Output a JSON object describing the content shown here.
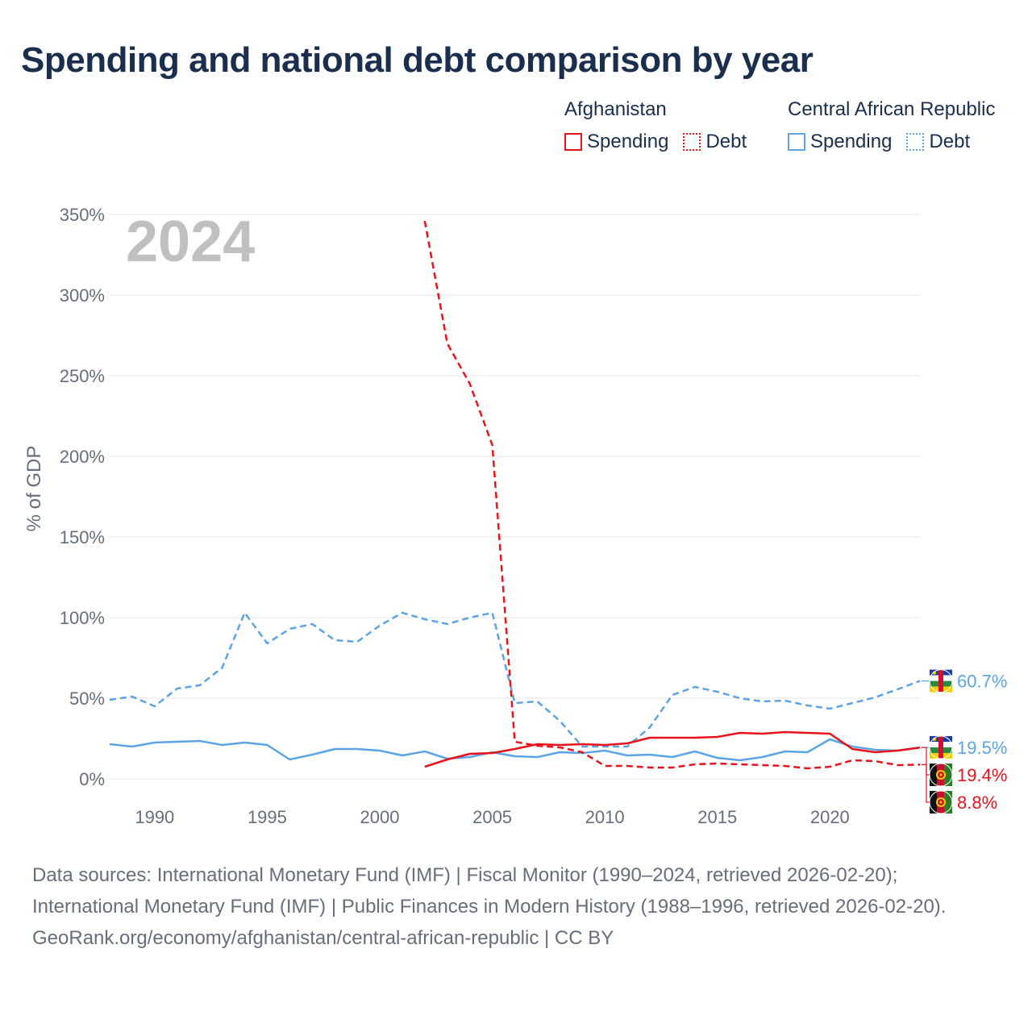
{
  "title": "Spending and national debt comparison by year",
  "legend": {
    "groups": [
      {
        "country": "Afghanistan",
        "spending_label": "Spending",
        "debt_label": "Debt",
        "color": "#e8131b"
      },
      {
        "country": "Central African Republic",
        "spending_label": "Spending",
        "debt_label": "Debt",
        "color": "#5ba4e5"
      }
    ]
  },
  "footer": {
    "sources": "Data sources: International Monetary Fund (IMF) | Fiscal Monitor (1990–2024, retrieved 2026-02-20); International Monetary Fund (IMF) | Public Finances in Modern History (1988–1996, retrieved 2026-02-20).",
    "credit": "GeoRank.org/economy/afghanistan/central-african-republic | CC BY"
  },
  "chart_data": {
    "type": "line",
    "title": "Spending and national debt comparison by year",
    "year_label": "2024",
    "xlabel": "",
    "ylabel": "% of GDP",
    "xlim": [
      1988,
      2024
    ],
    "ylim": [
      0,
      350
    ],
    "x_ticks": [
      1990,
      1995,
      2000,
      2005,
      2010,
      2015,
      2020
    ],
    "y_ticks": [
      0,
      50,
      100,
      150,
      200,
      250,
      300,
      350
    ],
    "y_tick_labels": [
      "0%",
      "50%",
      "100%",
      "150%",
      "200%",
      "250%",
      "300%",
      "350%"
    ],
    "series": [
      {
        "name": "Central African Republic Debt",
        "country": "Central African Republic",
        "measure": "Debt",
        "color": "#5ba4e5",
        "dashed": true,
        "x": [
          1988,
          1989,
          1990,
          1991,
          1992,
          1993,
          1994,
          1995,
          1996,
          1997,
          1998,
          1999,
          2000,
          2001,
          2002,
          2003,
          2004,
          2005,
          2006,
          2007,
          2008,
          2009,
          2010,
          2011,
          2012,
          2013,
          2014,
          2015,
          2016,
          2017,
          2018,
          2019,
          2020,
          2021,
          2022,
          2023,
          2024
        ],
        "values": [
          49,
          51,
          45,
          56,
          58,
          69,
          103,
          84,
          93,
          96,
          86,
          85,
          95,
          103,
          99,
          96,
          100,
          103,
          47,
          48,
          36,
          20,
          20,
          20,
          32,
          52,
          57,
          54,
          50,
          48,
          48.5,
          45.5,
          43.5,
          47,
          50.5,
          55.5,
          60.7
        ],
        "end_label": "60.7%"
      },
      {
        "name": "Central African Republic Spending",
        "country": "Central African Republic",
        "measure": "Spending",
        "color": "#5ba4e5",
        "dashed": false,
        "x": [
          1988,
          1989,
          1990,
          1991,
          1992,
          1993,
          1994,
          1995,
          1996,
          1997,
          1998,
          1999,
          2000,
          2001,
          2002,
          2003,
          2004,
          2005,
          2006,
          2007,
          2008,
          2009,
          2010,
          2011,
          2012,
          2013,
          2014,
          2015,
          2016,
          2017,
          2018,
          2019,
          2020,
          2021,
          2022,
          2023,
          2024
        ],
        "values": [
          21.5,
          20,
          22.5,
          23,
          23.5,
          21,
          22.5,
          21,
          12,
          15,
          18.5,
          18.5,
          17.5,
          14.5,
          17,
          12.5,
          13.5,
          16.5,
          14,
          13.5,
          16.5,
          16,
          17.5,
          14.5,
          15,
          13.5,
          17,
          13,
          11.5,
          13.5,
          17,
          16.5,
          24.5,
          20,
          18,
          17.5,
          19.5
        ],
        "end_label": "19.5%"
      },
      {
        "name": "Afghanistan Debt",
        "country": "Afghanistan",
        "measure": "Debt",
        "color": "#e8131b",
        "dashed": true,
        "x": [
          2002,
          2003,
          2004,
          2005,
          2006,
          2007,
          2008,
          2009,
          2010,
          2011,
          2012,
          2013,
          2014,
          2015,
          2016,
          2017,
          2018,
          2019,
          2020,
          2021,
          2022,
          2023,
          2024
        ],
        "values": [
          346,
          270,
          245,
          207,
          23,
          20.5,
          19.5,
          16.5,
          8,
          8,
          7,
          7,
          9,
          9.5,
          9,
          8.5,
          8,
          6.5,
          7.5,
          11.5,
          11,
          8.5,
          8.8
        ],
        "end_label": "8.8%"
      },
      {
        "name": "Afghanistan Spending",
        "country": "Afghanistan",
        "measure": "Spending",
        "color": "#e8131b",
        "dashed": false,
        "x": [
          2002,
          2003,
          2004,
          2005,
          2006,
          2007,
          2008,
          2009,
          2010,
          2011,
          2012,
          2013,
          2014,
          2015,
          2016,
          2017,
          2018,
          2019,
          2020,
          2021,
          2022,
          2023,
          2024
        ],
        "values": [
          7.5,
          12,
          15.5,
          16,
          18.5,
          21.5,
          21,
          21.5,
          21,
          22,
          25.5,
          25.5,
          25.5,
          26,
          28.5,
          28,
          29,
          28.5,
          28,
          18.5,
          16.5,
          17.5,
          19.4
        ],
        "end_label": "19.4%"
      }
    ]
  }
}
